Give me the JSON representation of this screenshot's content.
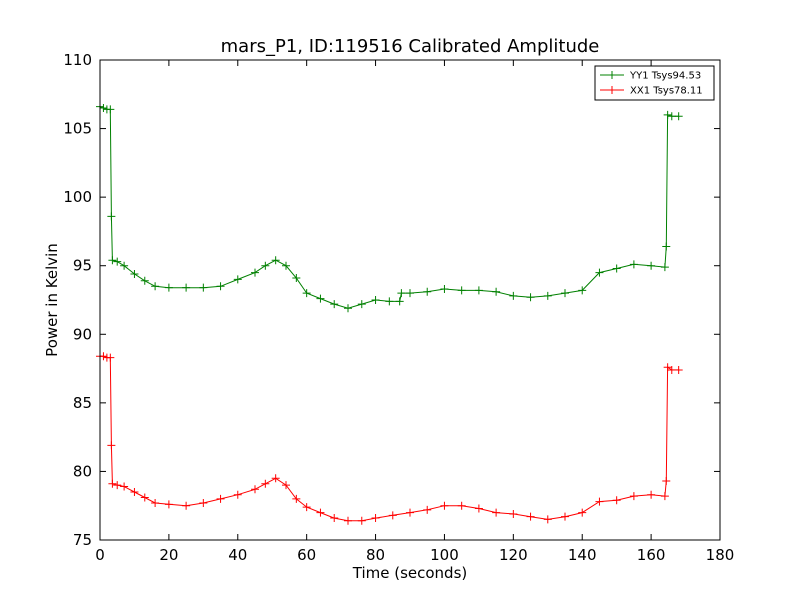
{
  "chart_data": {
    "type": "line",
    "title": "mars_P1, ID:119516 Calibrated Amplitude",
    "xlabel": "Time (seconds)",
    "ylabel": "Power in Kelvin",
    "xlim": [
      0,
      180
    ],
    "ylim": [
      75,
      110
    ],
    "xticks": [
      0,
      20,
      40,
      60,
      80,
      100,
      120,
      140,
      160,
      180
    ],
    "yticks": [
      75,
      80,
      85,
      90,
      95,
      100,
      105,
      110
    ],
    "grid": false,
    "legend_position": "top-right",
    "marker": "+",
    "series": [
      {
        "name": "YY1 Tsys94.53",
        "color": "#008000",
        "x": [
          0,
          1,
          2,
          3,
          3.3,
          3.6,
          5,
          7,
          10,
          13,
          16,
          20,
          25,
          30,
          35,
          40,
          45,
          48,
          51,
          54,
          57,
          60,
          64,
          68,
          72,
          76,
          80,
          84,
          87,
          87.5,
          90,
          95,
          100,
          105,
          110,
          115,
          120,
          125,
          130,
          135,
          140,
          145,
          150,
          155,
          160,
          164,
          164.4,
          164.8,
          166,
          168
        ],
        "y": [
          106.6,
          106.5,
          106.4,
          106.4,
          98.6,
          95.4,
          95.3,
          95.0,
          94.4,
          93.9,
          93.5,
          93.4,
          93.4,
          93.4,
          93.5,
          94.0,
          94.5,
          95.0,
          95.4,
          95.0,
          94.1,
          93.0,
          92.6,
          92.2,
          91.9,
          92.2,
          92.5,
          92.4,
          92.4,
          93.0,
          93.0,
          93.1,
          93.3,
          93.2,
          93.2,
          93.1,
          92.8,
          92.7,
          92.8,
          93.0,
          93.2,
          94.5,
          94.8,
          95.1,
          95.0,
          94.9,
          96.4,
          106.0,
          105.9,
          105.9
        ]
      },
      {
        "name": "XX1 Tsys78.11",
        "color": "#ff0000",
        "x": [
          0,
          1,
          2,
          3,
          3.3,
          3.6,
          5,
          7,
          10,
          13,
          16,
          20,
          25,
          30,
          35,
          40,
          45,
          48,
          51,
          54,
          57,
          60,
          64,
          68,
          72,
          76,
          80,
          85,
          90,
          95,
          100,
          105,
          110,
          115,
          120,
          125,
          130,
          135,
          140,
          145,
          150,
          155,
          160,
          164,
          164.4,
          164.8,
          166,
          168
        ],
        "y": [
          88.4,
          88.4,
          88.3,
          88.3,
          81.9,
          79.1,
          79.0,
          78.9,
          78.5,
          78.1,
          77.7,
          77.6,
          77.5,
          77.7,
          78.0,
          78.3,
          78.7,
          79.1,
          79.5,
          79.0,
          78.0,
          77.4,
          77.0,
          76.6,
          76.4,
          76.4,
          76.6,
          76.8,
          77.0,
          77.2,
          77.5,
          77.5,
          77.3,
          77.0,
          76.9,
          76.7,
          76.5,
          76.7,
          77.0,
          77.8,
          77.9,
          78.2,
          78.3,
          78.2,
          79.3,
          87.6,
          87.4,
          87.4
        ]
      }
    ]
  }
}
